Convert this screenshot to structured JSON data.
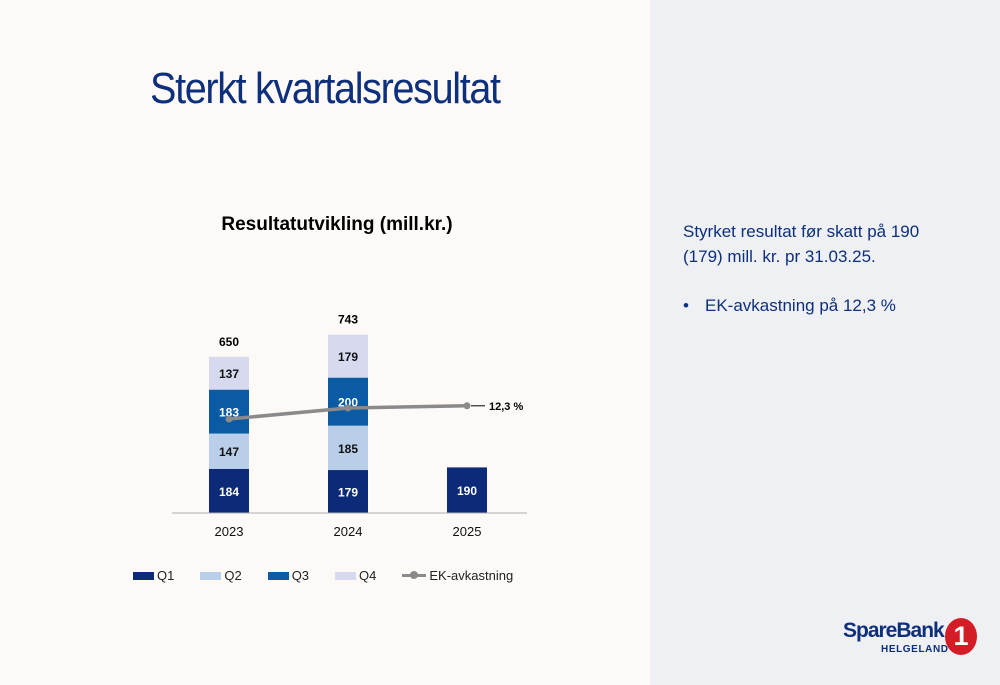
{
  "slide": {
    "title": "Sterkt kvartalsresultat",
    "summary_text": "Styrket resultat før skatt på 190 (179) mill. kr. pr 31.03.25.",
    "bullets": [
      "EK-avkastning på 12,3 %"
    ]
  },
  "logo": {
    "name": "SpareBank",
    "sub": "HELGELAND",
    "badge": "1",
    "badge_color": "#d41c27"
  },
  "chart_data": {
    "type": "bar",
    "stacked": true,
    "title": "Resultatutvikling (mill.kr.)",
    "categories": [
      "2023",
      "2024",
      "2025"
    ],
    "series": [
      {
        "name": "Q1",
        "color": "#0c2a78",
        "label_color": "#ffffff",
        "values": [
          184,
          179,
          190
        ]
      },
      {
        "name": "Q2",
        "color": "#b9cfe9",
        "label_color": "#111111",
        "values": [
          147,
          185,
          null
        ]
      },
      {
        "name": "Q3",
        "color": "#0a5aa4",
        "label_color": "#ffffff",
        "values": [
          183,
          200,
          null
        ]
      },
      {
        "name": "Q4",
        "color": "#d7d9ef",
        "label_color": "#111111",
        "values": [
          137,
          179,
          null
        ]
      }
    ],
    "totals": [
      "650",
      "743",
      ""
    ],
    "line_series": {
      "name": "EK-avkastning",
      "color": "#8a8a8a",
      "values": [
        11.1,
        12.1,
        12.3
      ],
      "point_labels": [
        "",
        "",
        "12,3 %"
      ]
    },
    "grid": false,
    "legend_position": "bottom"
  }
}
